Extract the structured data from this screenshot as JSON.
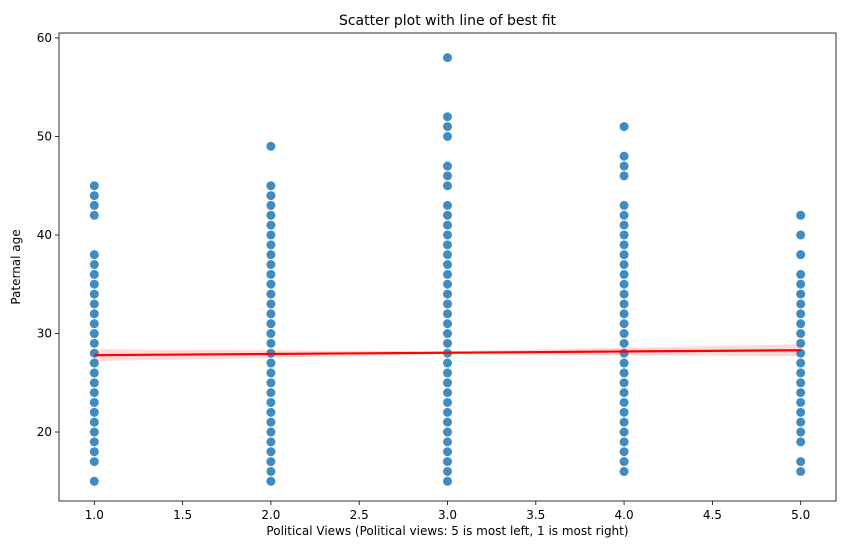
{
  "chart_data": {
    "type": "scatter",
    "title": "Scatter plot with line of best fit",
    "xlabel": "Political Views (Political views: 5 is most left, 1 is most right)",
    "ylabel": "Paternal age",
    "xlim": [
      0.8,
      5.2
    ],
    "ylim": [
      13,
      60.5
    ],
    "x_ticks": [
      1.0,
      1.5,
      2.0,
      2.5,
      3.0,
      3.5,
      4.0,
      4.5,
      5.0
    ],
    "x_tick_labels": [
      "1.0",
      "1.5",
      "2.0",
      "2.5",
      "3.0",
      "3.5",
      "4.0",
      "4.5",
      "5.0"
    ],
    "y_ticks": [
      20,
      30,
      40,
      50,
      60
    ],
    "y_tick_labels": [
      "20",
      "30",
      "40",
      "50",
      "60"
    ],
    "grid": false,
    "point_color": "#1f77b4",
    "fit_color": "#ff0000",
    "groups": [
      {
        "x": 1,
        "y": [
          15,
          17,
          18,
          19,
          20,
          21,
          22,
          23,
          24,
          25,
          26,
          27,
          28,
          29,
          30,
          31,
          32,
          33,
          34,
          35,
          36,
          37,
          38,
          42,
          43,
          44,
          45
        ]
      },
      {
        "x": 2,
        "y": [
          15,
          16,
          17,
          18,
          19,
          20,
          21,
          22,
          23,
          24,
          25,
          26,
          27,
          28,
          29,
          30,
          31,
          32,
          33,
          34,
          35,
          36,
          37,
          38,
          39,
          40,
          41,
          42,
          43,
          44,
          45,
          49
        ]
      },
      {
        "x": 3,
        "y": [
          15,
          16,
          17,
          18,
          19,
          20,
          21,
          22,
          23,
          24,
          25,
          26,
          27,
          28,
          29,
          30,
          31,
          32,
          33,
          34,
          35,
          36,
          37,
          38,
          39,
          40,
          41,
          42,
          43,
          45,
          46,
          47,
          50,
          51,
          52,
          58
        ]
      },
      {
        "x": 4,
        "y": [
          16,
          17,
          18,
          19,
          20,
          21,
          22,
          23,
          24,
          25,
          26,
          27,
          28,
          29,
          30,
          31,
          32,
          33,
          34,
          35,
          36,
          37,
          38,
          39,
          40,
          41,
          42,
          43,
          46,
          47,
          48,
          51
        ]
      },
      {
        "x": 5,
        "y": [
          16,
          17,
          19,
          20,
          21,
          22,
          23,
          24,
          25,
          26,
          27,
          28,
          29,
          30,
          31,
          32,
          33,
          34,
          35,
          36,
          38,
          40,
          42
        ]
      }
    ],
    "fit_line": {
      "x": [
        1.0,
        5.0
      ],
      "y": [
        27.8,
        28.3
      ]
    },
    "confidence_band": {
      "x": [
        1.0,
        3.0,
        5.0
      ],
      "lower": [
        27.2,
        27.9,
        27.7
      ],
      "upper": [
        28.4,
        28.2,
        28.9
      ]
    }
  }
}
